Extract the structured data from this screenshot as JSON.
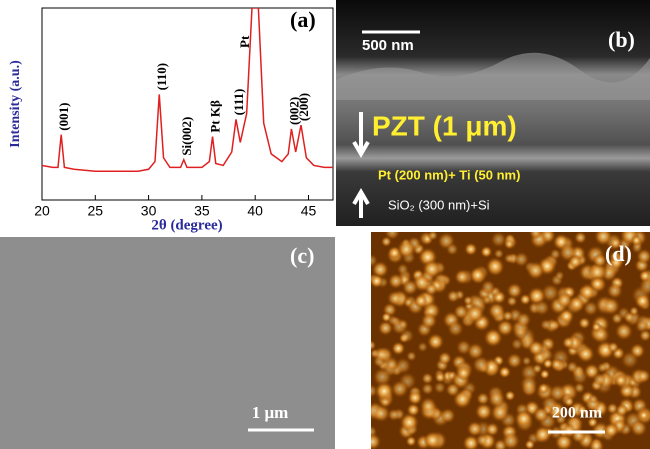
{
  "chart_data": {
    "type": "line",
    "xlabel": "2θ (degree)",
    "ylabel": "Intensity (a.u.)",
    "label": "(a)",
    "x": [
      20,
      21,
      21.5,
      21.8,
      22.1,
      23,
      25,
      27,
      29,
      30,
      30.6,
      31,
      31.4,
      32,
      33,
      33.3,
      33.6,
      35,
      35.7,
      36,
      36.3,
      37,
      37.8,
      38.2,
      38.6,
      39.2,
      39.7,
      40.3,
      40.8,
      41.5,
      42.5,
      43.1,
      43.4,
      43.8,
      44.3,
      44.8,
      45.5,
      46.5,
      47.3
    ],
    "values": [
      18,
      17,
      17,
      34,
      17,
      16,
      15,
      15,
      15,
      16,
      20,
      55,
      22,
      17,
      17,
      21,
      17,
      17,
      20,
      33,
      19,
      18,
      25,
      42,
      30,
      45,
      100,
      100,
      40,
      24,
      20,
      24,
      37,
      25,
      39,
      22,
      18,
      17,
      17
    ],
    "color": "#e02020",
    "xlim": [
      20,
      47.3
    ],
    "ylim": [
      0,
      100
    ],
    "xticks": [
      20,
      25,
      30,
      35,
      40,
      45
    ],
    "annotations": [
      {
        "text": "(001)",
        "x": 21.8
      },
      {
        "text": "(110)",
        "x": 31
      },
      {
        "text": "Si(002)",
        "x": 33.3
      },
      {
        "text": "Pt Kβ",
        "x": 36
      },
      {
        "text": "(111)",
        "x": 38.2
      },
      {
        "text": "Pt",
        "x": 39.7
      },
      {
        "text": "(002)",
        "x": 43.4
      },
      {
        "text": "(200)",
        "x": 44.3
      }
    ]
  },
  "panels": {
    "b": {
      "label": "(b)",
      "scale": "500 nm",
      "layer1": "PZT (1 μm)",
      "layer2": "Pt (200 nm)+ Ti (50 nm)",
      "layer3": "SiO₂ (300 nm)+Si"
    },
    "c": {
      "label": "(c)",
      "scale": "1 μm"
    },
    "d": {
      "label": "(d)",
      "scale": "200 nm"
    }
  }
}
